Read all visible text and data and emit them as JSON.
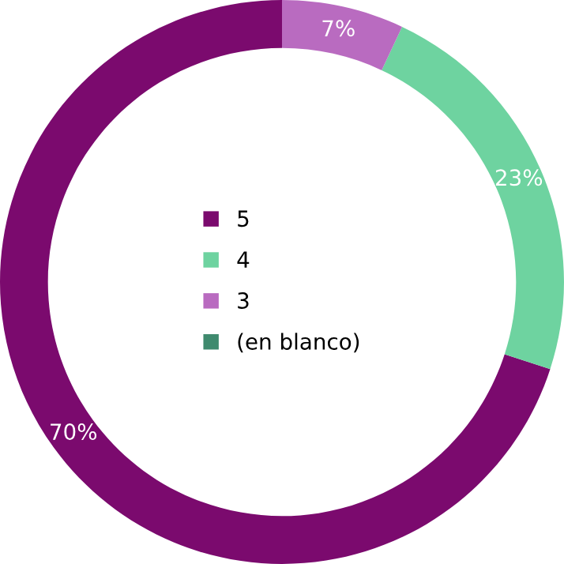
{
  "chart_data": {
    "type": "donut",
    "categories": [
      "5",
      "4",
      "3",
      "(en blanco)"
    ],
    "values": [
      70,
      23,
      7,
      0
    ],
    "colors": [
      "#7b0a6e",
      "#6ed3a0",
      "#b96bc0",
      "#3f8a6e"
    ],
    "value_labels": [
      "70%",
      "23%",
      "7%",
      null
    ],
    "legend": "center"
  }
}
